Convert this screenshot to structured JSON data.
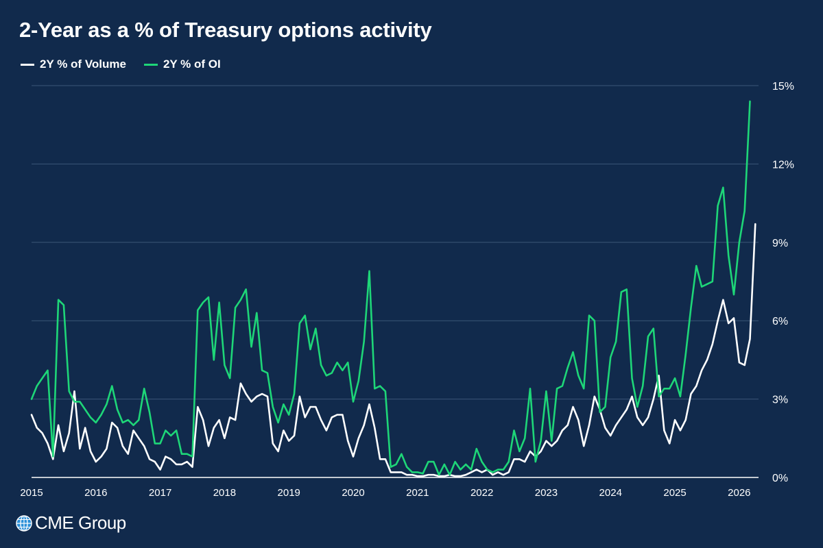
{
  "chart_data": {
    "type": "line",
    "title": "2-Year as a % of Treasury options activity",
    "xlabel": "",
    "ylabel": "",
    "ylim": [
      0,
      15
    ],
    "yticks": [
      0,
      3,
      6,
      9,
      12,
      15
    ],
    "ytick_labels": [
      "0%",
      "3%",
      "6%",
      "9%",
      "12%",
      "15%"
    ],
    "xlim": [
      2015,
      2026.3
    ],
    "xticks": [
      2015,
      2016,
      2017,
      2018,
      2019,
      2020,
      2021,
      2022,
      2023,
      2024,
      2025,
      2026
    ],
    "xtick_labels": [
      "2015",
      "2016",
      "2017",
      "2018",
      "2019",
      "2020",
      "2021",
      "2022",
      "2023",
      "2024",
      "2025",
      "2026"
    ],
    "grid": "horizontal",
    "legend_position": "top-left",
    "series": [
      {
        "name": "2Y % of Volume",
        "color": "#ffffff",
        "start": 2015.0,
        "step_months": 1,
        "values": [
          2.4,
          1.9,
          1.7,
          1.3,
          0.7,
          2.0,
          1.0,
          1.7,
          3.3,
          1.1,
          1.9,
          1.0,
          0.6,
          0.8,
          1.1,
          2.1,
          1.9,
          1.2,
          0.9,
          1.8,
          1.5,
          1.2,
          0.7,
          0.6,
          0.3,
          0.8,
          0.7,
          0.5,
          0.5,
          0.6,
          0.4,
          2.7,
          2.2,
          1.2,
          1.9,
          2.2,
          1.5,
          2.3,
          2.2,
          3.6,
          3.2,
          2.9,
          3.1,
          3.2,
          3.1,
          1.3,
          1.0,
          1.8,
          1.4,
          1.6,
          3.1,
          2.3,
          2.7,
          2.7,
          2.2,
          1.8,
          2.3,
          2.4,
          2.4,
          1.4,
          0.8,
          1.5,
          2.0,
          2.8,
          1.9,
          0.7,
          0.7,
          0.2,
          0.2,
          0.2,
          0.1,
          0.1,
          0.05,
          0.05,
          0.1,
          0.1,
          0.05,
          0.05,
          0.1,
          0.05,
          0.05,
          0.1,
          0.2,
          0.3,
          0.2,
          0.3,
          0.1,
          0.2,
          0.1,
          0.2,
          0.7,
          0.7,
          0.6,
          1.0,
          0.8,
          1.0,
          1.4,
          1.2,
          1.4,
          1.8,
          2.0,
          2.7,
          2.2,
          1.2,
          2.0,
          3.1,
          2.6,
          1.9,
          1.6,
          2.0,
          2.3,
          2.6,
          3.1,
          2.3,
          2.0,
          2.3,
          3.0,
          3.9,
          1.8,
          1.3,
          2.2,
          1.8,
          2.2,
          3.2,
          3.5,
          4.1,
          4.5,
          5.1,
          6.0,
          6.8,
          5.9,
          6.1,
          4.4,
          4.3,
          5.3,
          9.7
        ]
      },
      {
        "name": "2Y % of OI",
        "color": "#1ed678",
        "start": 2015.0,
        "step_months": 1,
        "values": [
          3.0,
          3.5,
          3.8,
          4.1,
          0.8,
          6.8,
          6.6,
          3.3,
          2.9,
          2.9,
          2.6,
          2.3,
          2.1,
          2.4,
          2.8,
          3.5,
          2.6,
          2.1,
          2.2,
          2.0,
          2.2,
          3.4,
          2.5,
          1.3,
          1.3,
          1.8,
          1.6,
          1.8,
          0.9,
          0.9,
          0.8,
          6.4,
          6.7,
          6.9,
          4.5,
          6.7,
          4.3,
          3.8,
          6.5,
          6.8,
          7.2,
          5.0,
          6.3,
          4.1,
          4.0,
          2.7,
          2.1,
          2.8,
          2.4,
          3.2,
          5.9,
          6.2,
          4.9,
          5.7,
          4.3,
          3.9,
          4.0,
          4.4,
          4.1,
          4.4,
          2.9,
          3.7,
          5.2,
          7.9,
          3.4,
          3.5,
          3.3,
          0.4,
          0.5,
          0.9,
          0.4,
          0.2,
          0.2,
          0.15,
          0.6,
          0.6,
          0.1,
          0.5,
          0.1,
          0.6,
          0.3,
          0.5,
          0.3,
          1.1,
          0.6,
          0.3,
          0.2,
          0.3,
          0.3,
          0.6,
          1.8,
          1.0,
          1.5,
          3.4,
          0.6,
          1.4,
          3.3,
          1.4,
          3.4,
          3.5,
          4.2,
          4.8,
          3.9,
          3.4,
          6.2,
          6.0,
          2.5,
          2.7,
          4.6,
          5.2,
          7.1,
          7.2,
          3.8,
          2.7,
          3.5,
          5.4,
          5.7,
          3.1,
          3.4,
          3.4,
          3.8,
          3.1,
          4.7,
          6.5,
          8.1,
          7.3,
          7.4,
          7.5,
          10.4,
          11.1,
          8.5,
          7.0,
          9.0,
          10.2,
          14.4
        ]
      }
    ]
  },
  "logo": {
    "text": "CME Group",
    "icon": "globe-icon"
  }
}
